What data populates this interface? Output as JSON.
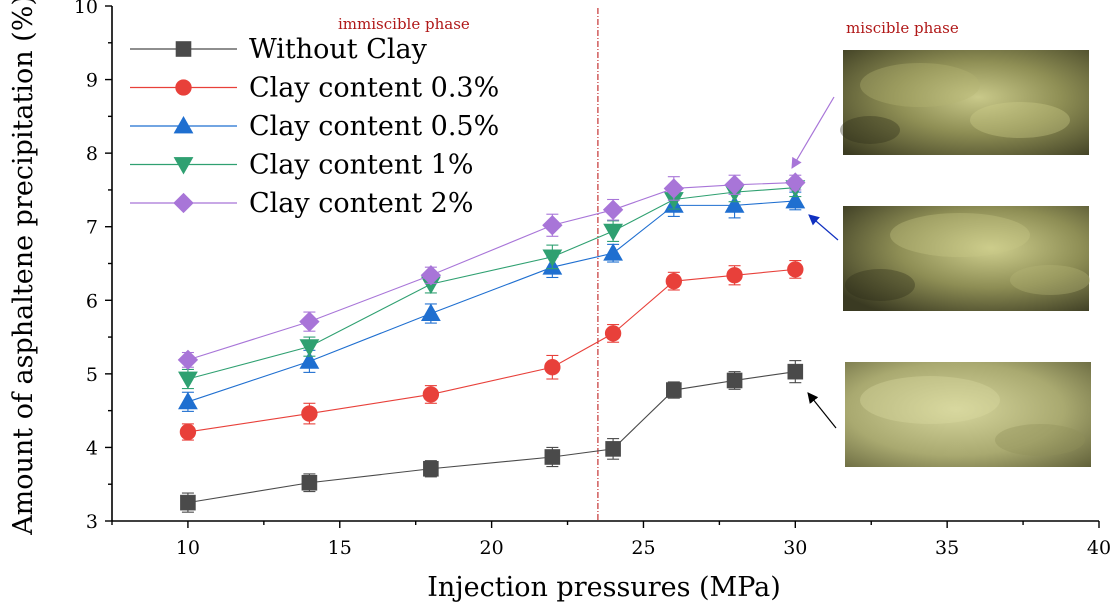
{
  "chart_data": {
    "type": "line",
    "title": "",
    "xlabel": "Injection pressures (MPa)",
    "ylabel": "Amount of asphaltene precipitation (%)",
    "xlim": [
      7.5,
      40
    ],
    "ylim": [
      3,
      10
    ],
    "xticks": [
      10,
      15,
      20,
      25,
      30,
      35,
      40
    ],
    "yticks": [
      3,
      4,
      5,
      6,
      7,
      8,
      9,
      10
    ],
    "grid": false,
    "legend_position": "top-left",
    "x": [
      10,
      14,
      18,
      22,
      24,
      26,
      28,
      30
    ],
    "phase_divider_x": 23.5,
    "annotations": [
      {
        "text": "immiscible phase",
        "color": "#b01818"
      },
      {
        "text": "miscible phase",
        "color": "#b01818"
      }
    ],
    "series": [
      {
        "name": "Without Clay",
        "color": "#4a4a4a",
        "marker": "square",
        "values": [
          3.25,
          3.52,
          3.71,
          3.87,
          3.98,
          4.78,
          4.91,
          5.03
        ],
        "errors": [
          0.13,
          0.12,
          0.11,
          0.13,
          0.14,
          0.11,
          0.12,
          0.15
        ]
      },
      {
        "name": "Clay content 0.3%",
        "color": "#e8403a",
        "marker": "circle",
        "values": [
          4.21,
          4.46,
          4.72,
          5.09,
          5.55,
          6.26,
          6.34,
          6.42
        ],
        "errors": [
          0.11,
          0.14,
          0.12,
          0.16,
          0.12,
          0.12,
          0.13,
          0.12
        ]
      },
      {
        "name": "Clay content 0.5%",
        "color": "#1f6fd0",
        "marker": "triangle-up",
        "values": [
          4.62,
          5.17,
          5.82,
          6.45,
          6.64,
          7.29,
          7.29,
          7.35
        ],
        "errors": [
          0.13,
          0.15,
          0.13,
          0.14,
          0.12,
          0.15,
          0.17,
          0.12
        ]
      },
      {
        "name": "Clay content 1%",
        "color": "#2fa071",
        "marker": "triangle-down",
        "values": [
          4.93,
          5.37,
          6.22,
          6.59,
          6.94,
          7.37,
          7.47,
          7.53
        ],
        "errors": [
          0.13,
          0.13,
          0.12,
          0.16,
          0.14,
          0.13,
          0.13,
          0.12
        ]
      },
      {
        "name": "Clay content 2%",
        "color": "#a875d8",
        "marker": "diamond",
        "values": [
          5.19,
          5.71,
          6.34,
          7.02,
          7.23,
          7.52,
          7.57,
          7.6
        ],
        "errors": [
          0.1,
          0.13,
          0.11,
          0.15,
          0.14,
          0.16,
          0.13,
          0.1
        ]
      }
    ],
    "inset_images": [
      {
        "name": "micrograph-top",
        "arrow_color": "#a875d8",
        "points_to_series": "Clay content 2%"
      },
      {
        "name": "micrograph-middle",
        "arrow_color": "#1030c0",
        "points_to_series": "Clay content 0.5%"
      },
      {
        "name": "micrograph-bottom",
        "arrow_color": "#000000",
        "points_to_series": "Without Clay"
      }
    ]
  }
}
